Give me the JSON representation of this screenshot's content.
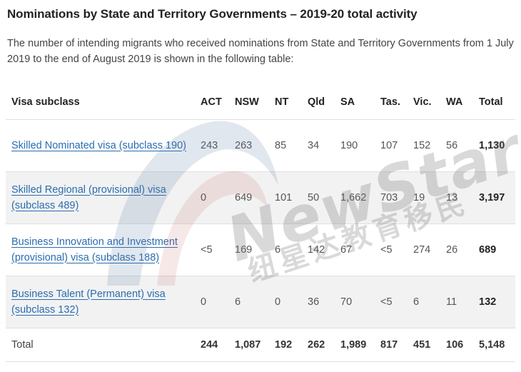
{
  "title": "Nominations by State and Territory Governments – 2019-20 total activity",
  "intro": "The number of intending migrants who received nominations from State and Territory Governments from 1 July 2019 to the end of August 2019 is shown in the following table:",
  "table": {
    "headers": [
      "Visa subclass",
      "ACT",
      "NSW",
      "NT",
      "Qld",
      "SA",
      "Tas.",
      "Vic.",
      "WA",
      "Total"
    ],
    "rows": [
      {
        "visa": "Skilled Nominated visa (subclass 190)",
        "values": [
          "243",
          "263",
          "85",
          "34",
          "190",
          "107",
          "152",
          "56"
        ],
        "total": "1,130"
      },
      {
        "visa": "Skilled Regional (provisional) visa (subclass 489)",
        "values": [
          "0",
          "649",
          "101",
          "50",
          "1,662",
          "703",
          "19",
          "13"
        ],
        "total": "3,197"
      },
      {
        "visa": "Business Innovation and Investment (provisional) visa (subclass 188)",
        "values": [
          "<5",
          "169",
          "6",
          "142",
          "67",
          "<5",
          "274",
          "26"
        ],
        "total": "689"
      },
      {
        "visa": "Business Talent (Permanent) visa (subclass 132)",
        "values": [
          "0",
          "6",
          "0",
          "36",
          "70",
          "<5",
          "6",
          "11"
        ],
        "total": "132"
      }
    ],
    "total_row": {
      "label": "Total",
      "values": [
        "244",
        "1,087",
        "192",
        "262",
        "1,989",
        "817",
        "451",
        "106"
      ],
      "total": "5,148"
    }
  },
  "watermark": {
    "text": "NewStars",
    "subtext": "纽星达教育移民"
  },
  "colors": {
    "link": "#2a6db0",
    "row_shade": "#f2f2f2"
  }
}
